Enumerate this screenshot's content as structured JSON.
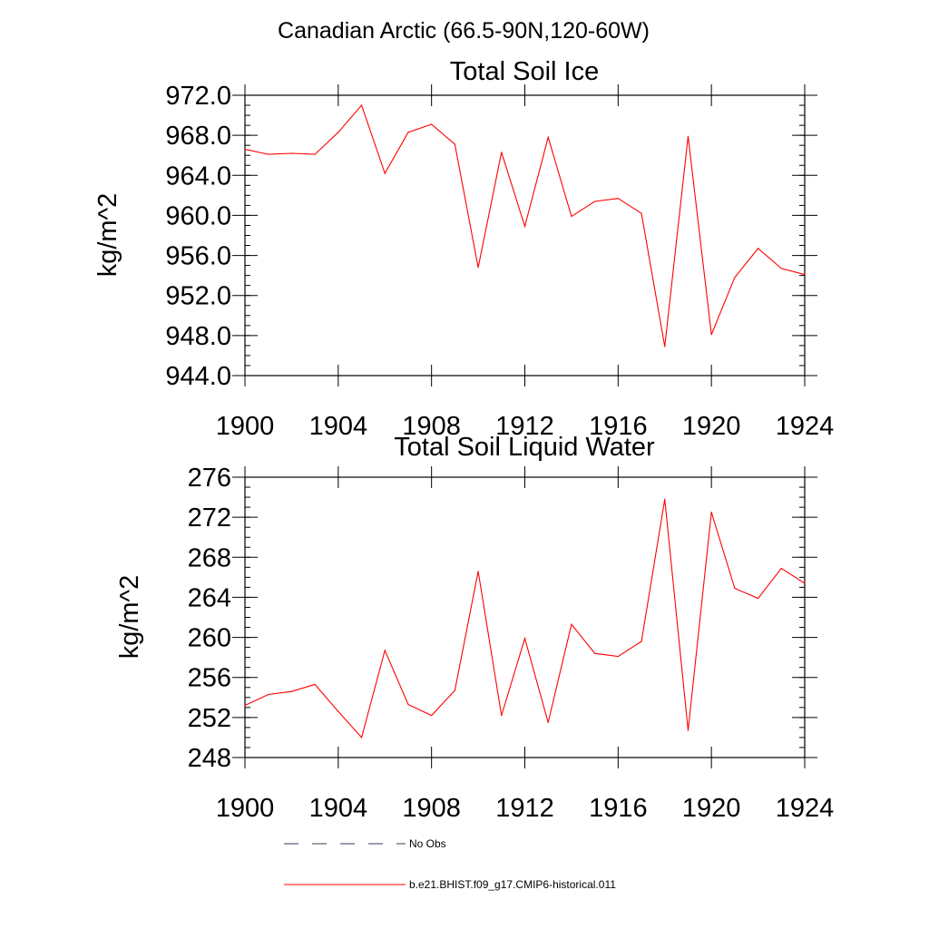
{
  "figure": {
    "main_title": "Canadian Arctic (66.5-90N,120-60W)",
    "colors": {
      "model_line": "#ff0000",
      "obs_line": "#3a3a5a",
      "axis": "#000000"
    }
  },
  "legend": {
    "items": [
      {
        "label": "No Obs",
        "style": "dashed"
      },
      {
        "label": "b.e21.BHIST.f09_g17.CMIP6-historical.011",
        "style": "solid"
      }
    ]
  },
  "chart_data": [
    {
      "type": "line",
      "title": "Total Soil Ice",
      "xlabel": "",
      "ylabel": "kg/m^2",
      "xlim": [
        1900,
        1924
      ],
      "ylim": [
        944,
        972
      ],
      "x_ticks": [
        "1900",
        "1904",
        "1908",
        "1912",
        "1916",
        "1920",
        "1924"
      ],
      "y_ticks": [
        "944.0",
        "948.0",
        "952.0",
        "956.0",
        "960.0",
        "964.0",
        "968.0",
        "972.0"
      ],
      "x": [
        1900,
        1901,
        1902,
        1903,
        1904,
        1905,
        1906,
        1907,
        1908,
        1909,
        1910,
        1911,
        1912,
        1913,
        1914,
        1915,
        1916,
        1917,
        1918,
        1919,
        1920,
        1921,
        1922,
        1923,
        1924
      ],
      "series": [
        {
          "name": "b.e21.BHIST.f09_g17.CMIP6-historical.011",
          "values": [
            966.6,
            966.1,
            966.2,
            966.1,
            968.3,
            971.0,
            964.2,
            968.3,
            969.1,
            967.1,
            954.8,
            966.3,
            958.9,
            967.8,
            959.9,
            961.4,
            961.7,
            960.2,
            946.9,
            967.9,
            948.1,
            953.8,
            956.7,
            954.7,
            954.1
          ]
        }
      ],
      "grid": false
    },
    {
      "type": "line",
      "title": "Total Soil Liquid Water",
      "xlabel": "",
      "ylabel": "kg/m^2",
      "xlim": [
        1900,
        1924
      ],
      "ylim": [
        248,
        276
      ],
      "x_ticks": [
        "1900",
        "1904",
        "1908",
        "1912",
        "1916",
        "1920",
        "1924"
      ],
      "y_ticks": [
        "248",
        "252",
        "256",
        "260",
        "264",
        "268",
        "272",
        "276"
      ],
      "x": [
        1900,
        1901,
        1902,
        1903,
        1904,
        1905,
        1906,
        1907,
        1908,
        1909,
        1910,
        1911,
        1912,
        1913,
        1914,
        1915,
        1916,
        1917,
        1918,
        1919,
        1920,
        1921,
        1922,
        1923,
        1924
      ],
      "series": [
        {
          "name": "b.e21.BHIST.f09_g17.CMIP6-historical.011",
          "values": [
            253.2,
            254.3,
            254.6,
            255.3,
            252.6,
            250.0,
            258.7,
            253.3,
            252.2,
            254.7,
            266.6,
            252.2,
            259.9,
            251.5,
            261.3,
            258.4,
            258.1,
            259.6,
            273.8,
            250.7,
            272.5,
            264.9,
            263.9,
            266.9,
            265.4
          ]
        }
      ],
      "grid": false
    }
  ]
}
